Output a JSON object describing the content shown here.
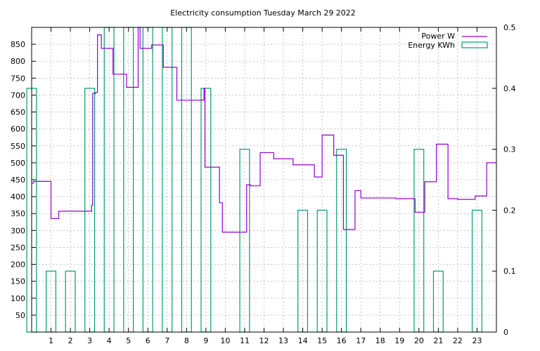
{
  "chart_data": {
    "type": "line",
    "title": "Electricity consumption Tuesday March 29 2022",
    "xlim": [
      0,
      24
    ],
    "xticks": [
      1,
      2,
      3,
      4,
      5,
      6,
      7,
      8,
      9,
      10,
      11,
      12,
      13,
      14,
      15,
      16,
      17,
      18,
      19,
      20,
      21,
      22,
      23
    ],
    "y_left": {
      "lim": [
        0,
        900
      ],
      "ticks": [
        50,
        100,
        150,
        200,
        250,
        300,
        350,
        400,
        450,
        500,
        550,
        600,
        650,
        700,
        750,
        800,
        850
      ]
    },
    "y_right": {
      "lim": [
        0,
        0.5
      ],
      "ticks": [
        "0",
        "0.1",
        "0.2",
        "0.3",
        "0.4",
        "0.5"
      ],
      "tick_values": [
        0,
        0.1,
        0.2,
        0.3,
        0.4,
        0.5
      ]
    },
    "grid": true,
    "legend_position": "top-right",
    "series": [
      {
        "name": "Power W",
        "axis": "left",
        "style": "steps",
        "color": "#9400d3",
        "x": [
          0,
          0.1,
          0.95,
          1.0,
          1.4,
          2.8,
          3.1,
          3.15,
          3.3,
          3.4,
          3.6,
          4.2,
          4.9,
          5.5,
          5.6,
          6.2,
          6.8,
          7.5,
          8.9,
          8.95,
          9.7,
          9.85,
          10.3,
          11.1,
          11.3,
          11.8,
          12.5,
          13.5,
          14.6,
          15.0,
          15.6,
          16.1,
          16.7,
          17.0,
          18.8,
          19.8,
          20.3,
          20.9,
          21.5,
          22.0,
          22.9,
          23.5,
          24.0
        ],
        "y": [
          440,
          445,
          445,
          335,
          357,
          357,
          375,
          705,
          708,
          878,
          838,
          762,
          723,
          900,
          838,
          848,
          782,
          685,
          720,
          487,
          382,
          295,
          295,
          435,
          432,
          530,
          512,
          494,
          458,
          582,
          522,
          303,
          418,
          396,
          394,
          354,
          444,
          555,
          394,
          392,
          402,
          500,
          500
        ]
      },
      {
        "name": "Energy KWh",
        "axis": "right",
        "style": "histogram",
        "color": "#009e73",
        "x": [
          0,
          1,
          2,
          3,
          4,
          5,
          6,
          7,
          8,
          9,
          10,
          11,
          12,
          13,
          14,
          15,
          16,
          17,
          18,
          19,
          20,
          21,
          22,
          23
        ],
        "y": [
          0.4,
          0.1,
          0.1,
          0.4,
          0.5,
          0.5,
          0.5,
          0.5,
          0.5,
          0.4,
          0,
          0.3,
          0,
          0,
          0.2,
          0.2,
          0.3,
          0,
          0,
          0,
          0.3,
          0.1,
          0,
          0.2
        ]
      }
    ]
  }
}
